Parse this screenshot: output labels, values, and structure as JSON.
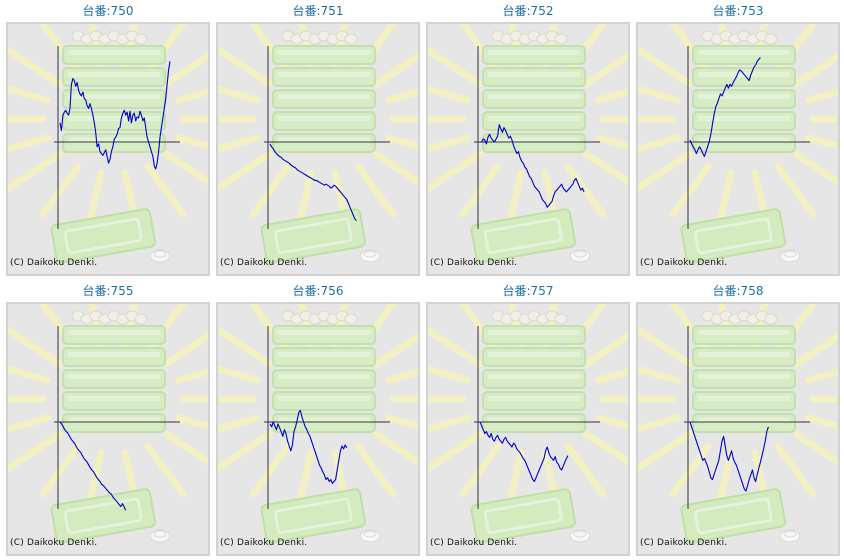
{
  "title_prefix": "台番:",
  "copyright": "(C) Daikoku Denki.",
  "colors": {
    "title": "#1f6fa8",
    "line": "#0000cc",
    "axis": "#333333",
    "card_bg": "#e6e6e6",
    "border": "#d2d2d2"
  },
  "machines": [
    {
      "id": "750",
      "series": [
        20,
        12,
        28,
        31,
        33,
        30,
        28,
        35,
        60,
        66,
        64,
        58,
        62,
        54,
        50,
        48,
        52,
        45,
        44,
        38,
        35,
        40,
        35,
        28,
        20,
        10,
        -5,
        -2,
        -10,
        -12,
        -14,
        -11,
        -8,
        -15,
        -22,
        -18,
        -10,
        -5,
        3,
        5,
        8,
        14,
        15,
        25,
        30,
        33,
        28,
        31,
        22,
        32,
        20,
        28,
        30,
        22,
        26,
        25,
        32,
        28,
        22,
        25,
        15,
        5,
        0,
        -5,
        -10,
        -15,
        -25,
        -28,
        -22,
        -10,
        5,
        15,
        25,
        35,
        45,
        60,
        75,
        84
      ]
    },
    {
      "id": "751",
      "series": [
        -2,
        -5,
        -7,
        -10,
        -12,
        -14,
        -15,
        -16,
        -18,
        -19,
        -20,
        -21,
        -22,
        -24,
        -25,
        -26,
        -27,
        -29,
        -30,
        -31,
        -32,
        -33,
        -34,
        -35,
        -36,
        -37,
        -38,
        -39,
        -40,
        -40,
        -41,
        -42,
        -43,
        -44,
        -45,
        -44,
        -45,
        -46,
        -48,
        -47,
        -45,
        -46,
        -48,
        -50,
        -52,
        -54,
        -56,
        -58,
        -60,
        -64,
        -68,
        -72,
        -76,
        -80,
        -82
      ]
    },
    {
      "id": "752",
      "series": [
        0,
        0,
        3,
        2,
        -2,
        5,
        8,
        4,
        2,
        0,
        3,
        6,
        18,
        14,
        10,
        15,
        12,
        8,
        4,
        6,
        2,
        -4,
        -8,
        -12,
        -10,
        -16,
        -20,
        -22,
        -26,
        -28,
        -32,
        -36,
        -38,
        -42,
        -46,
        -48,
        -50,
        -52,
        -56,
        -60,
        -62,
        -64,
        -68,
        -66,
        -64,
        -62,
        -56,
        -52,
        -50,
        -48,
        -46,
        -44,
        -48,
        -50,
        -52,
        -50,
        -48,
        -46,
        -44,
        -40,
        -38,
        -42,
        -46,
        -50,
        -48,
        -52
      ]
    },
    {
      "id": "753",
      "series": [
        2,
        -2,
        -5,
        -8,
        -12,
        -8,
        -5,
        -8,
        -12,
        -15,
        -10,
        -5,
        0,
        8,
        18,
        28,
        36,
        40,
        45,
        50,
        48,
        52,
        56,
        60,
        56,
        60,
        58,
        62,
        65,
        68,
        72,
        75,
        74,
        72,
        70,
        68,
        66,
        64,
        70,
        74,
        78,
        80,
        84,
        86,
        88
      ]
    },
    {
      "id": "755",
      "series": [
        0,
        -2,
        -5,
        -8,
        -10,
        -12,
        -15,
        -18,
        -20,
        -22,
        -25,
        -28,
        -30,
        -32,
        -35,
        -38,
        -40,
        -42,
        -45,
        -48,
        -50,
        -52,
        -55,
        -58,
        -60,
        -62,
        -65,
        -66,
        -68,
        -70,
        -72,
        -74,
        -75,
        -78,
        -80,
        -82,
        -84,
        -86,
        -88,
        -85,
        -88,
        -92
      ]
    },
    {
      "id": "756",
      "series": [
        -2,
        -5,
        0,
        -4,
        -8,
        -2,
        -6,
        -10,
        -15,
        -8,
        -12,
        -20,
        -25,
        -30,
        -24,
        -10,
        -5,
        2,
        10,
        12,
        5,
        0,
        -5,
        -8,
        -12,
        -15,
        -20,
        -25,
        -30,
        -35,
        -40,
        -45,
        -48,
        -52,
        -55,
        -60,
        -58,
        -62,
        -60,
        -64,
        -62,
        -60,
        -50,
        -40,
        -30,
        -25,
        -28,
        -24,
        -27
      ]
    },
    {
      "id": "757",
      "series": [
        0,
        -4,
        -8,
        -12,
        -10,
        -14,
        -16,
        -12,
        -18,
        -20,
        -16,
        -14,
        -18,
        -20,
        -22,
        -18,
        -16,
        -20,
        -22,
        -24,
        -26,
        -22,
        -24,
        -28,
        -30,
        -32,
        -35,
        -38,
        -40,
        -44,
        -48,
        -52,
        -56,
        -60,
        -62,
        -58,
        -54,
        -50,
        -46,
        -42,
        -38,
        -30,
        -26,
        -32,
        -36,
        -38,
        -40,
        -36,
        -42,
        -44,
        -48,
        -50,
        -46,
        -42,
        -38,
        -35
      ]
    },
    {
      "id": "758",
      "series": [
        0,
        -5,
        -10,
        -15,
        -20,
        -25,
        -30,
        -35,
        -40,
        -38,
        -42,
        -46,
        -52,
        -58,
        -60,
        -55,
        -50,
        -45,
        -40,
        -30,
        -20,
        -15,
        -25,
        -35,
        -40,
        -35,
        -30,
        -38,
        -42,
        -45,
        -50,
        -55,
        -60,
        -65,
        -70,
        -72,
        -66,
        -60,
        -55,
        -50,
        -58,
        -62,
        -55,
        -48,
        -42,
        -35,
        -28,
        -20,
        -10,
        -5
      ]
    }
  ]
}
